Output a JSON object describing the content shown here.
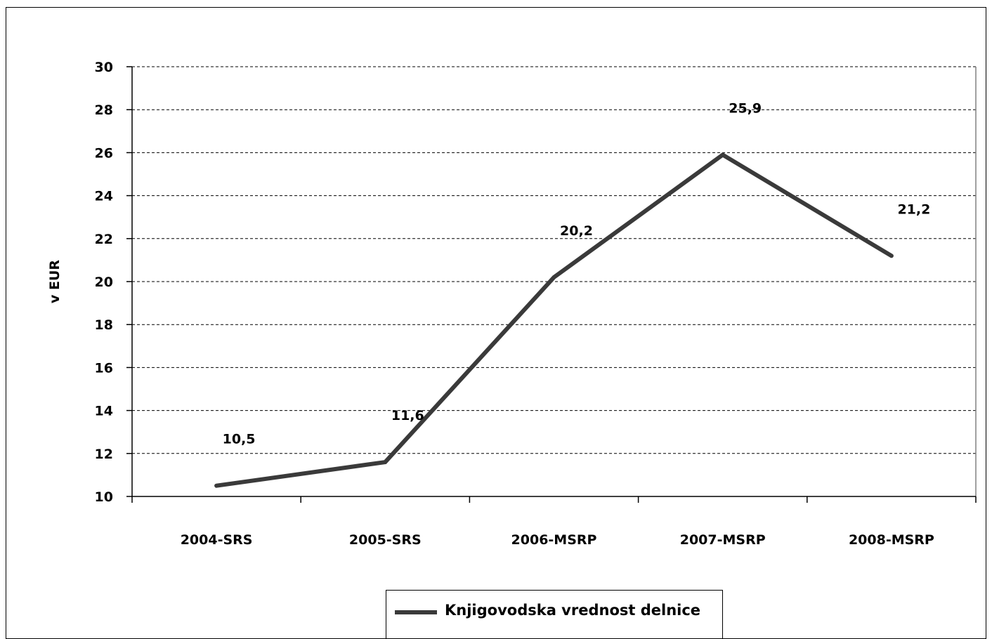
{
  "chart_data": {
    "type": "line",
    "categories": [
      "2004-SRS",
      "2005-SRS",
      "2006-MSRP",
      "2007-MSRP",
      "2008-MSRP"
    ],
    "series": [
      {
        "name": "Knjigovodska vrednost delnice",
        "values": [
          10.5,
          11.6,
          20.2,
          25.9,
          21.2
        ],
        "value_labels": [
          "10,5",
          "11,6",
          "20,2",
          "25,9",
          "21,2"
        ],
        "color": "#3a3a3a"
      }
    ],
    "title": "",
    "xlabel": "",
    "ylabel": "v EUR",
    "ylim": [
      10,
      30
    ],
    "yticks": [
      10,
      12,
      14,
      16,
      18,
      20,
      22,
      24,
      26,
      28,
      30
    ],
    "grid": true,
    "legend": "bottom"
  }
}
